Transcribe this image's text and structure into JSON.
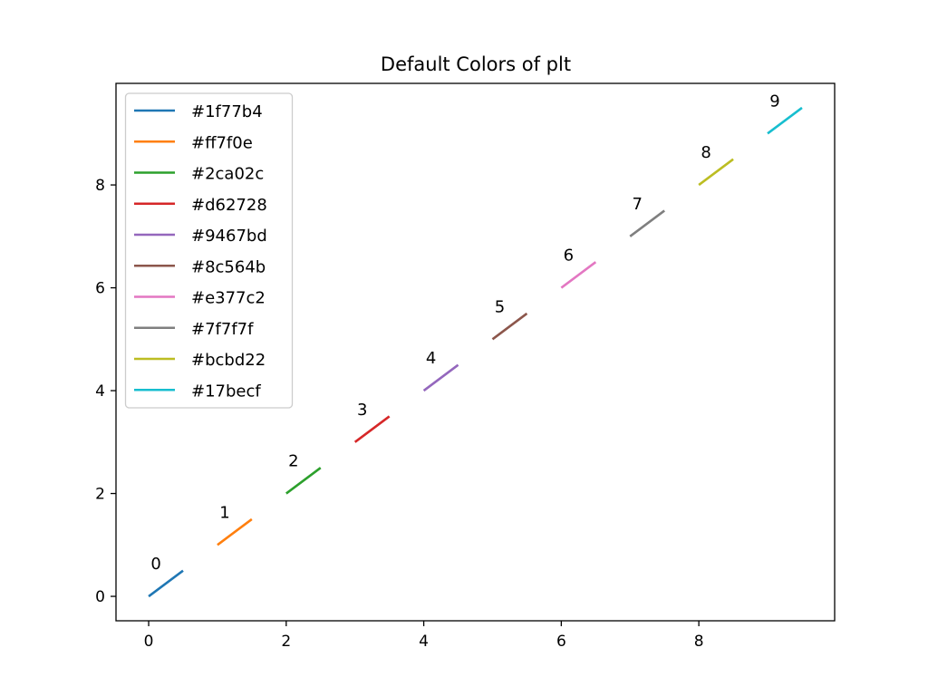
{
  "chart_data": {
    "type": "line",
    "title": "Default Colors of plt",
    "xlabel": "",
    "ylabel": "",
    "xlim": [
      -0.475,
      9.975
    ],
    "ylim": [
      -0.475,
      9.975
    ],
    "xticks": [
      0,
      2,
      4,
      6,
      8
    ],
    "yticks": [
      0,
      2,
      4,
      6,
      8
    ],
    "grid": false,
    "legend_position": "upper-left",
    "series": [
      {
        "name": "#1f77b4",
        "color": "#1f77b4",
        "x": [
          0,
          0.5
        ],
        "y": [
          0,
          0.5
        ],
        "label": "0"
      },
      {
        "name": "#ff7f0e",
        "color": "#ff7f0e",
        "x": [
          1,
          1.5
        ],
        "y": [
          1,
          1.5
        ],
        "label": "1"
      },
      {
        "name": "#2ca02c",
        "color": "#2ca02c",
        "x": [
          2,
          2.5
        ],
        "y": [
          2,
          2.5
        ],
        "label": "2"
      },
      {
        "name": "#d62728",
        "color": "#d62728",
        "x": [
          3,
          3.5
        ],
        "y": [
          3,
          3.5
        ],
        "label": "3"
      },
      {
        "name": "#9467bd",
        "color": "#9467bd",
        "x": [
          4,
          4.5
        ],
        "y": [
          4,
          4.5
        ],
        "label": "4"
      },
      {
        "name": "#8c564b",
        "color": "#8c564b",
        "x": [
          5,
          5.5
        ],
        "y": [
          5,
          5.5
        ],
        "label": "5"
      },
      {
        "name": "#e377c2",
        "color": "#e377c2",
        "x": [
          6,
          6.5
        ],
        "y": [
          6,
          6.5
        ],
        "label": "6"
      },
      {
        "name": "#7f7f7f",
        "color": "#7f7f7f",
        "x": [
          7,
          7.5
        ],
        "y": [
          7,
          7.5
        ],
        "label": "7"
      },
      {
        "name": "#bcbd22",
        "color": "#bcbd22",
        "x": [
          8,
          8.5
        ],
        "y": [
          8,
          8.5
        ],
        "label": "8"
      },
      {
        "name": "#17becf",
        "color": "#17becf",
        "x": [
          9,
          9.5
        ],
        "y": [
          9,
          9.5
        ],
        "label": "9"
      }
    ]
  }
}
